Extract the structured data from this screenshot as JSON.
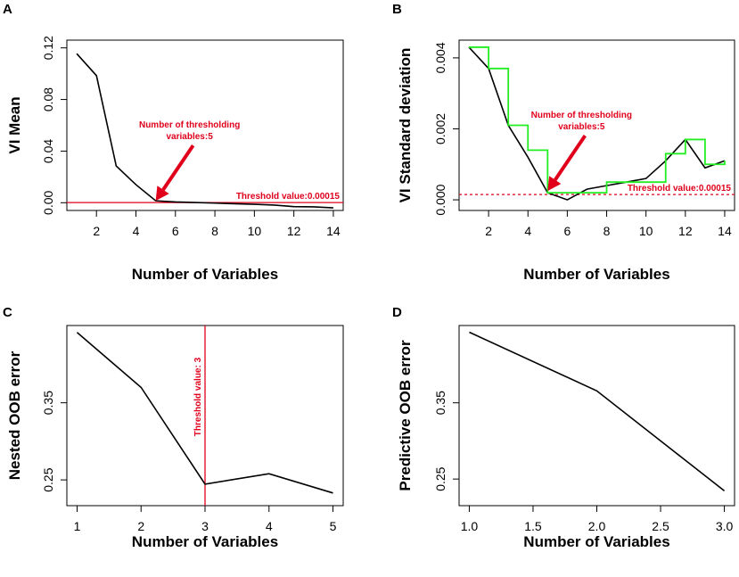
{
  "chart_data": [
    {
      "panel": "A",
      "type": "line",
      "xlabel": "Number of Variables",
      "ylabel": "VI Mean",
      "xlim": [
        0.5,
        14.5
      ],
      "ylim": [
        -0.006,
        0.126
      ],
      "x_ticks": [
        2,
        4,
        6,
        8,
        10,
        12,
        14
      ],
      "y_ticks": [
        0.0,
        0.04,
        0.08,
        0.12
      ],
      "y_tick_labels": [
        "0.00",
        "0.04",
        "0.08",
        "0.12"
      ],
      "series": [
        {
          "name": "VI Mean",
          "color": "#000000",
          "x": [
            1,
            2,
            3,
            4,
            5,
            6,
            7,
            8,
            9,
            10,
            11,
            12,
            13,
            14
          ],
          "y": [
            0.1155,
            0.0985,
            0.0285,
            0.014,
            0.0015,
            0.0006,
            0.0002,
            -0.0003,
            -0.0008,
            -0.0012,
            -0.0018,
            -0.003,
            -0.0032,
            -0.004
          ]
        }
      ],
      "hline": {
        "y": 0.00015,
        "color": "#e0001b",
        "style": "solid",
        "label": "Threshold value:0.00015"
      },
      "annotation": {
        "lines": [
          "Number of thresholding",
          "variables:5"
        ],
        "target_x": 5,
        "target_y": 0.0015,
        "color": "#e0001b"
      }
    },
    {
      "panel": "B",
      "type": "line",
      "xlabel": "Number of Variables",
      "ylabel": "VI Standard deviation",
      "xlim": [
        0.5,
        14.5
      ],
      "ylim": [
        -0.0003,
        0.0045
      ],
      "x_ticks": [
        2,
        4,
        6,
        8,
        10,
        12,
        14
      ],
      "y_ticks": [
        0.0,
        0.002,
        0.004
      ],
      "y_tick_labels": [
        "0.000",
        "0.002",
        "0.004"
      ],
      "series": [
        {
          "name": "VI Standard deviation",
          "color": "#000000",
          "x": [
            1,
            2,
            3,
            4,
            5,
            6,
            7,
            8,
            9,
            10,
            11,
            12,
            13,
            14
          ],
          "y": [
            0.0043,
            0.0037,
            0.0021,
            0.0012,
            0.0002,
            0.0,
            0.0003,
            0.0004,
            0.0005,
            0.0006,
            0.0011,
            0.0017,
            0.0009,
            0.0011
          ]
        },
        {
          "name": "Step envelope",
          "color": "#22ee22",
          "step": true,
          "x": [
            1,
            2,
            3,
            4,
            5,
            6,
            7,
            8,
            9,
            10,
            11,
            12,
            13,
            14
          ],
          "y": [
            0.0043,
            0.0037,
            0.0021,
            0.0014,
            0.0002,
            0.0002,
            0.0002,
            0.0005,
            0.0005,
            0.0005,
            0.0013,
            0.0017,
            0.001,
            0.0011
          ]
        }
      ],
      "hline": {
        "y": 0.00015,
        "color": "#e0001b",
        "style": "dashed",
        "label": "Threshold value:0.00015"
      },
      "annotation": {
        "lines": [
          "Number of thresholding",
          "variables:5"
        ],
        "target_x": 5,
        "target_y": 0.00025,
        "color": "#e0001b"
      }
    },
    {
      "panel": "C",
      "type": "line",
      "xlabel": "Number of Variables",
      "ylabel": "Nested OOB error",
      "xlim": [
        0.84,
        5.16
      ],
      "ylim": [
        0.2166,
        0.4502
      ],
      "x_ticks": [
        1,
        2,
        3,
        4,
        5
      ],
      "y_ticks": [
        0.25,
        0.35
      ],
      "y_tick_labels": [
        "0.25",
        "0.35"
      ],
      "series": [
        {
          "name": "Nested OOB error",
          "color": "#000000",
          "x": [
            1,
            2,
            3,
            4,
            5
          ],
          "y": [
            0.4412,
            0.37,
            0.2445,
            0.258,
            0.233
          ]
        }
      ],
      "vline": {
        "x": 3,
        "color": "#e0001b",
        "label": "Threshold value: 3"
      }
    },
    {
      "panel": "D",
      "type": "line",
      "xlabel": "Number of Variables",
      "ylabel": "Predictive OOB error",
      "xlim": [
        0.92,
        3.08
      ],
      "ylim": [
        0.2151,
        0.4514
      ],
      "x_ticks": [
        1.0,
        1.5,
        2.0,
        2.5,
        3.0
      ],
      "x_tick_labels": [
        "1.0",
        "1.5",
        "2.0",
        "2.5",
        "3.0"
      ],
      "y_ticks": [
        0.25,
        0.35
      ],
      "y_tick_labels": [
        "0.25",
        "0.35"
      ],
      "series": [
        {
          "name": "Predictive OOB error",
          "color": "#000000",
          "x": [
            1,
            2,
            3
          ],
          "y": [
            0.4426,
            0.3657,
            0.2345
          ]
        }
      ]
    }
  ]
}
